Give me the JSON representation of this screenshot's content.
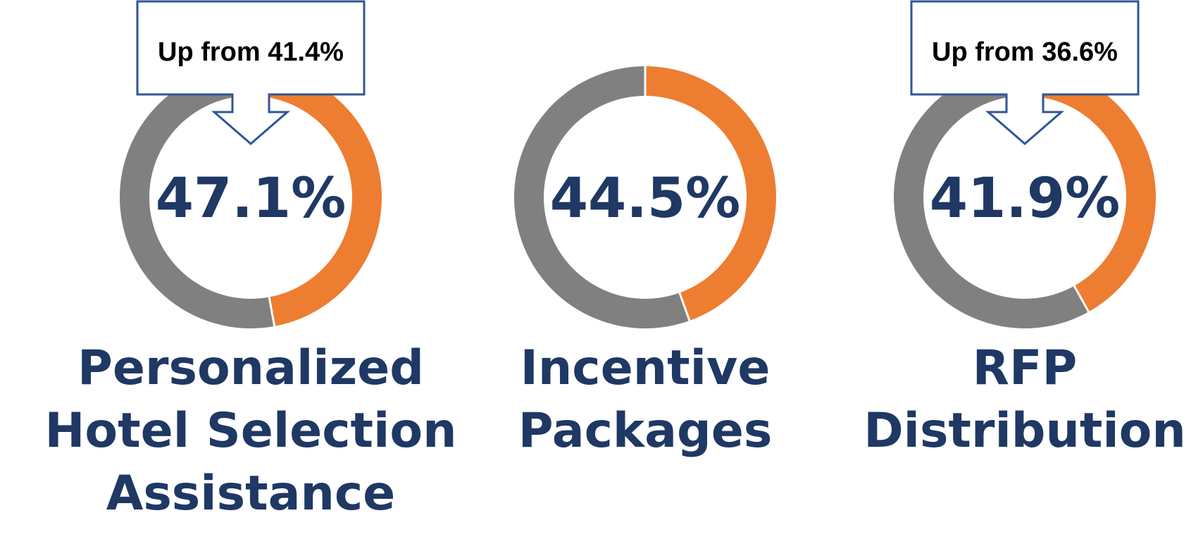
{
  "colors": {
    "accent": "#ED7D31",
    "remainder": "#808080",
    "text": "#1F3864",
    "callout_border": "#2F5597",
    "separator": "#FFFFFF"
  },
  "chart_data": [
    {
      "type": "pie",
      "variant": "donut",
      "value_text": "47.1%",
      "values": [
        47.1,
        52.9
      ],
      "label_lines": [
        "Personalized",
        "Hotel Selection",
        "Assistance"
      ],
      "callout": "Up from 41.4%",
      "previous_value": 41.4
    },
    {
      "type": "pie",
      "variant": "donut",
      "value_text": "44.5%",
      "values": [
        44.5,
        55.5
      ],
      "label_lines": [
        "Incentive",
        "Packages"
      ],
      "callout": null
    },
    {
      "type": "pie",
      "variant": "donut",
      "value_text": "41.9%",
      "values": [
        41.9,
        58.1
      ],
      "label_lines": [
        "RFP",
        "Distribution"
      ],
      "callout": "Up from 36.6%",
      "previous_value": 36.6
    }
  ]
}
